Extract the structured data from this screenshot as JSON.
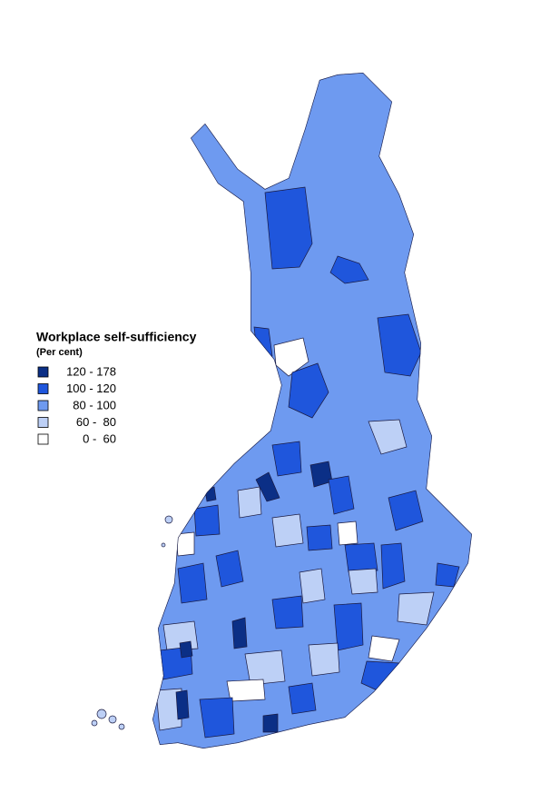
{
  "legend": {
    "title": "Workplace self-sufficiency",
    "subtitle": "(Per cent)",
    "classes": [
      {
        "label": "120 - 178",
        "color": "#0b2f86"
      },
      {
        "label": "100 - 120",
        "color": "#1f56dc"
      },
      {
        "label": "80 - 100",
        "color": "#6e9af0"
      },
      {
        "label": "60 -  80",
        "color": "#bdd0f6"
      },
      {
        "label": "0 -  60",
        "color": "#ffffff"
      }
    ]
  }
}
